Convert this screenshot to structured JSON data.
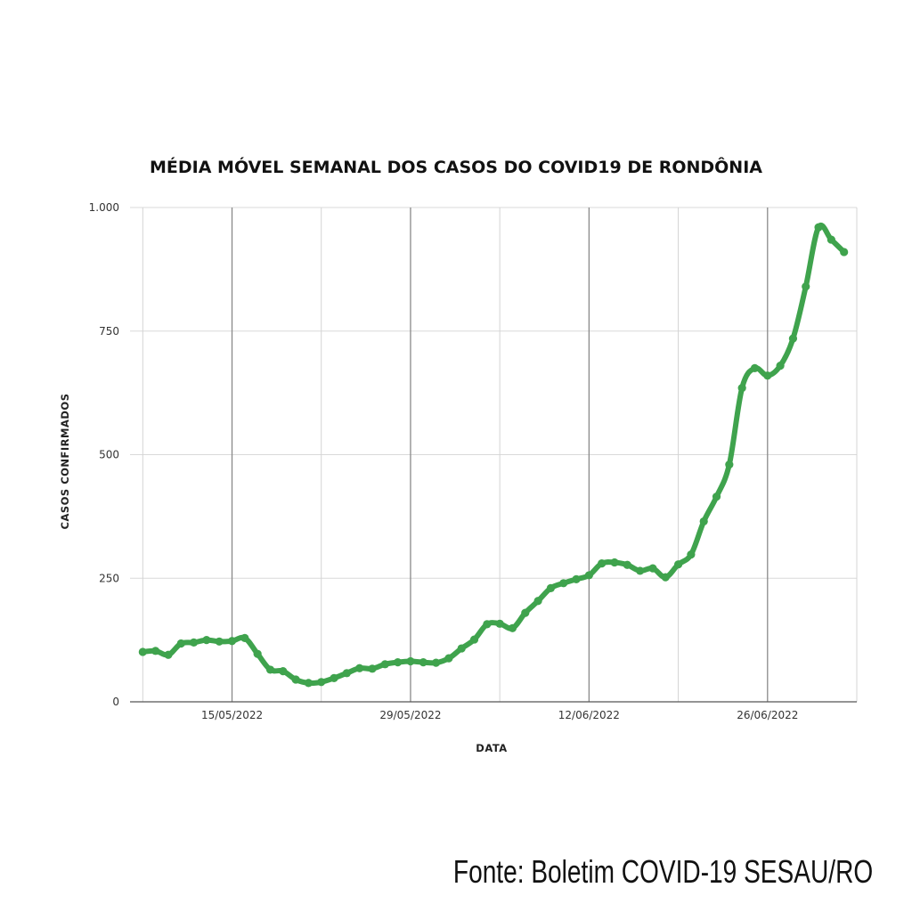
{
  "source": "Fonte: Boletim COVID-19 SESAU/RO",
  "chart_data": {
    "type": "line",
    "title": "MÉDIA MÓVEL SEMANAL DOS CASOS DO COVID19 DE RONDÔNIA",
    "xlabel": "DATA",
    "ylabel": "CASOS CONFIRMADOS",
    "y_ticks": [
      0,
      250,
      500,
      750,
      1000
    ],
    "y_tick_labels": [
      "0",
      "250",
      "500",
      "750",
      "1.000"
    ],
    "ylim": [
      0,
      1000
    ],
    "x_ticks": [
      "2022-05-15",
      "2022-05-29",
      "2022-06-12",
      "2022-06-26"
    ],
    "x_tick_labels": [
      "15/05/2022",
      "29/05/2022",
      "12/06/2022",
      "26/06/2022"
    ],
    "xlim": [
      "2022-05-07",
      "2022-07-03"
    ],
    "grid": true,
    "line_color": "#3fa34d",
    "series": [
      {
        "x": [
          "2022-05-08",
          "2022-05-09",
          "2022-05-10",
          "2022-05-11",
          "2022-05-12",
          "2022-05-13",
          "2022-05-14",
          "2022-05-15",
          "2022-05-16",
          "2022-05-17",
          "2022-05-18",
          "2022-05-19",
          "2022-05-20",
          "2022-05-21",
          "2022-05-22",
          "2022-05-23",
          "2022-05-24",
          "2022-05-25",
          "2022-05-26",
          "2022-05-27",
          "2022-05-28",
          "2022-05-29",
          "2022-05-30",
          "2022-05-31",
          "2022-06-01",
          "2022-06-02",
          "2022-06-03",
          "2022-06-04",
          "2022-06-05",
          "2022-06-06",
          "2022-06-07",
          "2022-06-08",
          "2022-06-09",
          "2022-06-10",
          "2022-06-11",
          "2022-06-12",
          "2022-06-13",
          "2022-06-14",
          "2022-06-15",
          "2022-06-16",
          "2022-06-17",
          "2022-06-18",
          "2022-06-19",
          "2022-06-20",
          "2022-06-21",
          "2022-06-22",
          "2022-06-23",
          "2022-06-24",
          "2022-06-25",
          "2022-06-26",
          "2022-06-27",
          "2022-06-28",
          "2022-06-29",
          "2022-06-30",
          "2022-07-01",
          "2022-07-02"
        ],
        "values": [
          101,
          103,
          95,
          118,
          120,
          125,
          122,
          123,
          129,
          97,
          65,
          62,
          45,
          38,
          40,
          48,
          58,
          68,
          67,
          76,
          80,
          82,
          80,
          79,
          88,
          108,
          126,
          157,
          158,
          149,
          180,
          204,
          230,
          240,
          248,
          256,
          280,
          282,
          277,
          265,
          270,
          252,
          278,
          298,
          365,
          415,
          480,
          635,
          675,
          660,
          680,
          735,
          840,
          960,
          935,
          910
        ]
      }
    ]
  }
}
